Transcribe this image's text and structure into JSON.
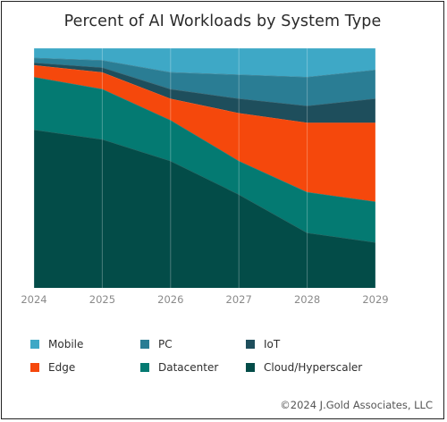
{
  "title": "Percent of AI Workloads by System Type",
  "copyright": "©2024 J.Gold Associates, LLC",
  "colors": {
    "mobile": "#3ea8c6",
    "pc": "#2a7d94",
    "iot": "#1e4e5c",
    "edge": "#f5480c",
    "datacenter": "#047a72",
    "cloud": "#034c48",
    "background": "#000000"
  },
  "chart_data": {
    "type": "area",
    "stacked": true,
    "x": [
      "2024",
      "2025",
      "2026",
      "2027",
      "2028",
      "2029"
    ],
    "ylim": [
      0,
      100
    ],
    "grid": true,
    "legend_position": "bottom",
    "series": [
      {
        "key": "cloud",
        "name": "Cloud/Hyperscaler",
        "values": [
          66,
          62,
          53,
          39,
          23,
          19
        ]
      },
      {
        "key": "datacenter",
        "name": "Datacenter",
        "values": [
          22,
          21,
          17,
          14,
          17,
          17
        ]
      },
      {
        "key": "edge",
        "name": "Edge",
        "values": [
          5,
          7,
          9,
          20,
          29,
          33
        ]
      },
      {
        "key": "iot",
        "name": "IoT",
        "values": [
          1,
          2,
          4,
          6,
          7,
          10
        ]
      },
      {
        "key": "pc",
        "name": "PC",
        "values": [
          2,
          3,
          7,
          10,
          12,
          12
        ]
      },
      {
        "key": "mobile",
        "name": "Mobile",
        "values": [
          4,
          5,
          10,
          11,
          12,
          9
        ]
      }
    ]
  },
  "legend": {
    "items": [
      {
        "key": "mobile",
        "label": "Mobile"
      },
      {
        "key": "pc",
        "label": "PC"
      },
      {
        "key": "iot",
        "label": "IoT"
      },
      {
        "key": "edge",
        "label": "Edge"
      },
      {
        "key": "datacenter",
        "label": "Datacenter"
      },
      {
        "key": "cloud",
        "label": "Cloud/Hyperscaler"
      }
    ]
  }
}
